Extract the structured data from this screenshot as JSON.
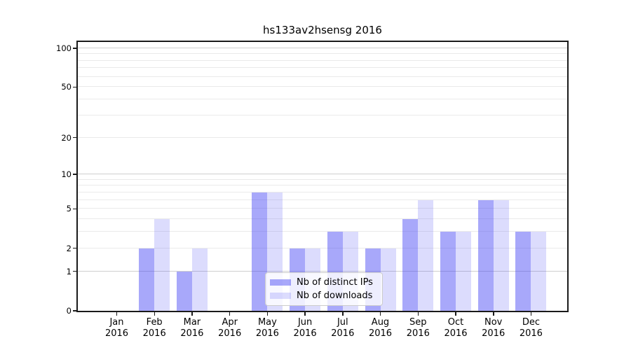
{
  "title": "hs133av2hsensg 2016",
  "year_label": "2016",
  "legend": {
    "items": [
      {
        "label": "Nb of distinct IPs",
        "color_key": "bar_primary"
      },
      {
        "label": "Nb of downloads",
        "color_key": "bar_secondary"
      }
    ]
  },
  "colors": {
    "bar_primary": "rgba(70,70,245,0.47)",
    "bar_secondary": "rgba(70,70,245,0.19)",
    "grid_major": "#cfcfcf",
    "grid_minor": "#eaeaea",
    "axis_frame": "#1a1a1a",
    "text": "#000000"
  },
  "chart_data": {
    "type": "bar",
    "title": "hs133av2hsensg 2016",
    "categories": [
      "Jan 2016",
      "Feb 2016",
      "Mar 2016",
      "Apr 2016",
      "May 2016",
      "Jun 2016",
      "Jul 2016",
      "Aug 2016",
      "Sep 2016",
      "Oct 2016",
      "Nov 2016",
      "Dec 2016"
    ],
    "month_labels": [
      "Jan",
      "Feb",
      "Mar",
      "Apr",
      "May",
      "Jun",
      "Jul",
      "Aug",
      "Sep",
      "Oct",
      "Nov",
      "Dec"
    ],
    "series": [
      {
        "name": "Nb of distinct IPs",
        "values": [
          0,
          2,
          1,
          0,
          7,
          2,
          3,
          2,
          4,
          3,
          6,
          3
        ]
      },
      {
        "name": "Nb of downloads",
        "values": [
          0,
          4,
          2,
          0,
          7,
          2,
          3,
          2,
          6,
          3,
          6,
          3
        ]
      }
    ],
    "xlabel": "",
    "ylabel": "",
    "yscale": "symlog",
    "ylim": [
      0,
      112
    ],
    "y_ticks": [
      0,
      1,
      2,
      5,
      10,
      20,
      50,
      100
    ],
    "y_gridlines_major": [
      1,
      10,
      100
    ],
    "y_gridlines_minor": [
      2,
      3,
      4,
      5,
      6,
      7,
      8,
      9,
      20,
      30,
      40,
      50,
      60,
      70,
      80,
      90
    ],
    "grid": true,
    "legend_position": "inside lower-center"
  }
}
